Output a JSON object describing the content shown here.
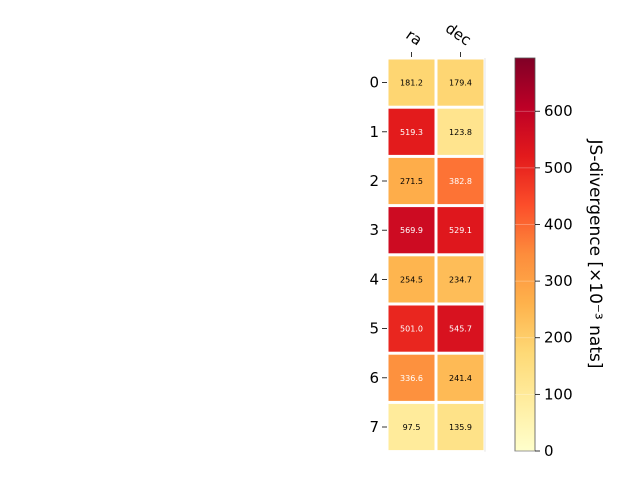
{
  "chart_data": {
    "type": "heatmap",
    "columns": [
      "ra",
      "dec"
    ],
    "rows": [
      "0",
      "1",
      "2",
      "3",
      "4",
      "5",
      "6",
      "7"
    ],
    "values": [
      [
        181.2,
        179.4
      ],
      [
        519.3,
        123.8
      ],
      [
        271.5,
        382.8
      ],
      [
        569.9,
        529.1
      ],
      [
        254.5,
        234.7
      ],
      [
        501.0,
        545.7
      ],
      [
        336.6,
        241.4
      ],
      [
        97.5,
        135.9
      ]
    ],
    "colorbar": {
      "label": "JS-divergence [×10⁻³ nats]",
      "min": 0,
      "max": 694,
      "ticks": [
        0,
        100,
        200,
        300,
        400,
        500,
        600
      ],
      "colormap": "YlOrRd"
    }
  }
}
